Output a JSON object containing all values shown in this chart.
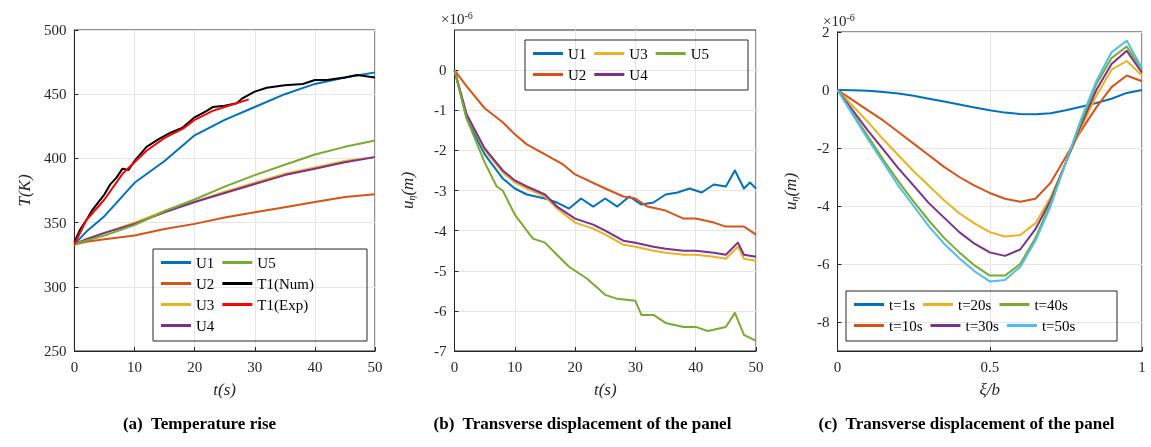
{
  "chart_data": [
    {
      "type": "line",
      "title": "(a)  Temperature rise",
      "xlabel": "t(s)",
      "ylabel": "T(K)",
      "xlim": [
        0,
        50
      ],
      "xticks": [
        0,
        10,
        20,
        30,
        40,
        50
      ],
      "ylim": [
        250,
        500
      ],
      "yticks": [
        250,
        300,
        350,
        400,
        450,
        500
      ],
      "grid": true,
      "legend": "bottom right",
      "marker": "none",
      "x": [
        0,
        2,
        5,
        10,
        15,
        20,
        25,
        30,
        35,
        40,
        45,
        50
      ],
      "series": [
        {
          "name": "U1",
          "color": "#0072bd",
          "values": [
            333,
            343,
            355,
            381,
            398,
            418,
            430,
            440,
            450,
            458,
            463,
            467
          ]
        },
        {
          "name": "U2",
          "color": "#d95319",
          "values": [
            333,
            335,
            337,
            340,
            345,
            349,
            354,
            358,
            362,
            366,
            370,
            372
          ]
        },
        {
          "name": "U3",
          "color": "#edb120",
          "values": [
            333,
            337,
            342,
            350,
            359,
            366,
            374,
            381,
            388,
            393,
            398,
            401
          ]
        },
        {
          "name": "U4",
          "color": "#7e2f8e",
          "values": [
            333,
            337,
            342,
            349,
            358,
            366,
            373,
            380,
            387,
            392,
            397,
            401
          ]
        },
        {
          "name": "U5",
          "color": "#77ac30",
          "values": [
            333,
            336,
            340,
            348,
            359,
            368,
            378,
            387,
            395,
            403,
            409,
            414
          ]
        },
        {
          "name": "T1(Num)",
          "color": "#000000",
          "x": [
            0,
            1,
            2,
            3,
            4,
            5,
            6,
            7,
            8,
            9,
            10,
            12,
            14,
            16,
            18,
            20,
            22,
            23,
            25,
            27,
            28,
            30,
            32,
            35,
            38,
            40,
            42,
            45,
            47,
            50
          ],
          "values": [
            335,
            345,
            352,
            360,
            366,
            372,
            380,
            385,
            392,
            391,
            398,
            409,
            415,
            420,
            424,
            432,
            437,
            440,
            441,
            443,
            447,
            452,
            455,
            457,
            458,
            461,
            461,
            463,
            465,
            463
          ]
        },
        {
          "name": "T1(Exp)",
          "color": "#ff0000",
          "x": [
            0,
            2,
            5,
            8,
            10,
            12,
            15,
            18,
            20,
            23,
            25,
            29
          ],
          "values": [
            333,
            352,
            368,
            388,
            397,
            406,
            416,
            423,
            430,
            437,
            440,
            446
          ]
        }
      ]
    },
    {
      "type": "line",
      "title": "(b)  Transverse displacement of the panel",
      "xlabel": "t(s)",
      "ylabel": "u$_{η}$(m)",
      "annotations": [
        "×10$^{-6}$"
      ],
      "xlim": [
        0,
        50
      ],
      "xticks": [
        0,
        10,
        20,
        30,
        40,
        50
      ],
      "ylim": [
        -7,
        1
      ],
      "yticks": [
        -7,
        -6,
        -5,
        -4,
        -3,
        -2,
        -1,
        0
      ],
      "grid": true,
      "legend": "top right",
      "marker": "none",
      "series": [
        {
          "name": "U1",
          "color": "#0072bd",
          "x": [
            0,
            2,
            5,
            8,
            10,
            12,
            15,
            17,
            19,
            21,
            23,
            25,
            27,
            29,
            31,
            33,
            35,
            37,
            39,
            41,
            43,
            45,
            46.5,
            48,
            49,
            50
          ],
          "values": [
            0,
            -1.2,
            -2.1,
            -2.7,
            -2.95,
            -3.1,
            -3.2,
            -3.3,
            -3.45,
            -3.2,
            -3.4,
            -3.2,
            -3.4,
            -3.15,
            -3.35,
            -3.3,
            -3.1,
            -3.05,
            -2.95,
            -3.05,
            -2.85,
            -2.9,
            -2.5,
            -2.95,
            -2.8,
            -2.95
          ]
        },
        {
          "name": "U2",
          "color": "#d95319",
          "x": [
            0,
            2,
            5,
            8,
            10,
            12,
            15,
            18,
            20,
            25,
            28,
            30,
            32,
            35,
            38,
            40,
            43,
            45,
            48,
            50
          ],
          "values": [
            0,
            -0.4,
            -0.95,
            -1.3,
            -1.6,
            -1.85,
            -2.1,
            -2.35,
            -2.6,
            -2.95,
            -3.15,
            -3.2,
            -3.4,
            -3.5,
            -3.7,
            -3.7,
            -3.8,
            -3.9,
            -3.9,
            -4.1
          ]
        },
        {
          "name": "U3",
          "color": "#edb120",
          "x": [
            0,
            2,
            5,
            8,
            10,
            12,
            15,
            17,
            20,
            23,
            25,
            28,
            30,
            33,
            35,
            38,
            40,
            43,
            45,
            47,
            48,
            50
          ],
          "values": [
            0,
            -1.1,
            -2.0,
            -2.55,
            -2.8,
            -2.95,
            -3.15,
            -3.45,
            -3.8,
            -3.95,
            -4.1,
            -4.35,
            -4.4,
            -4.5,
            -4.55,
            -4.6,
            -4.6,
            -4.65,
            -4.7,
            -4.4,
            -4.7,
            -4.75
          ]
        },
        {
          "name": "U4",
          "color": "#7e2f8e",
          "x": [
            0,
            2,
            5,
            8,
            10,
            12,
            15,
            17,
            20,
            23,
            25,
            28,
            30,
            33,
            35,
            38,
            40,
            43,
            45,
            47,
            48,
            50
          ],
          "values": [
            0,
            -1.1,
            -1.95,
            -2.5,
            -2.75,
            -2.9,
            -3.1,
            -3.4,
            -3.7,
            -3.85,
            -4.0,
            -4.25,
            -4.3,
            -4.4,
            -4.45,
            -4.5,
            -4.5,
            -4.55,
            -4.6,
            -4.3,
            -4.6,
            -4.65
          ]
        },
        {
          "name": "U5",
          "color": "#77ac30",
          "x": [
            0,
            2,
            5,
            7,
            8,
            10,
            12,
            13,
            15,
            17,
            19,
            20,
            22,
            25,
            27,
            30,
            31,
            33,
            35,
            38,
            40,
            42,
            45,
            46.5,
            48,
            50
          ],
          "values": [
            0,
            -1.2,
            -2.3,
            -2.9,
            -3.0,
            -3.6,
            -4.0,
            -4.2,
            -4.3,
            -4.6,
            -4.9,
            -5.0,
            -5.2,
            -5.6,
            -5.7,
            -5.75,
            -6.1,
            -6.1,
            -6.3,
            -6.4,
            -6.4,
            -6.5,
            -6.4,
            -6.05,
            -6.6,
            -6.75
          ]
        }
      ]
    },
    {
      "type": "line",
      "title": "(c)  Transverse displacement of the panel",
      "xlabel": "ξ/b",
      "ylabel": "u$_{η}$(m)",
      "annotations": [
        "×10$^{-6}$"
      ],
      "xlim": [
        0,
        1
      ],
      "xticks": [
        0,
        0.5,
        1
      ],
      "ylim": [
        -9,
        2
      ],
      "yticks": [
        -8,
        -6,
        -4,
        -2,
        0,
        2
      ],
      "grid": true,
      "legend": "bottom",
      "marker": "none",
      "x": [
        0,
        0.05,
        0.1,
        0.15,
        0.2,
        0.25,
        0.3,
        0.35,
        0.4,
        0.45,
        0.5,
        0.55,
        0.6,
        0.65,
        0.7,
        0.75,
        0.8,
        0.85,
        0.9,
        0.95,
        1
      ],
      "series": [
        {
          "name": "t=1s",
          "color": "#0072bd",
          "values": [
            0,
            -0.01,
            -0.03,
            -0.07,
            -0.12,
            -0.2,
            -0.3,
            -0.4,
            -0.5,
            -0.6,
            -0.7,
            -0.78,
            -0.83,
            -0.84,
            -0.8,
            -0.7,
            -0.58,
            -0.45,
            -0.3,
            -0.1,
            0
          ]
        },
        {
          "name": "t=10s",
          "color": "#d95319",
          "values": [
            0,
            -0.35,
            -0.7,
            -1.05,
            -1.45,
            -1.85,
            -2.25,
            -2.65,
            -3.0,
            -3.3,
            -3.55,
            -3.75,
            -3.85,
            -3.75,
            -3.2,
            -2.3,
            -1.4,
            -0.6,
            0.1,
            0.5,
            0.3
          ]
        },
        {
          "name": "t=20s",
          "color": "#edb120",
          "values": [
            0,
            -0.55,
            -1.1,
            -1.7,
            -2.25,
            -2.8,
            -3.3,
            -3.8,
            -4.25,
            -4.6,
            -4.9,
            -5.05,
            -5.0,
            -4.6,
            -3.7,
            -2.5,
            -1.3,
            -0.2,
            0.7,
            1.0,
            0.5
          ]
        },
        {
          "name": "t=30s",
          "color": "#7e2f8e",
          "values": [
            0,
            -0.7,
            -1.4,
            -2.05,
            -2.7,
            -3.3,
            -3.9,
            -4.4,
            -4.9,
            -5.3,
            -5.6,
            -5.72,
            -5.5,
            -4.8,
            -3.8,
            -2.5,
            -1.2,
            0.0,
            0.9,
            1.35,
            0.6
          ]
        },
        {
          "name": "t=40s",
          "color": "#77ac30",
          "values": [
            0,
            -0.8,
            -1.6,
            -2.4,
            -3.15,
            -3.85,
            -4.5,
            -5.1,
            -5.6,
            -6.05,
            -6.4,
            -6.4,
            -6.0,
            -5.1,
            -3.9,
            -2.5,
            -1.1,
            0.2,
            1.1,
            1.5,
            0.7
          ]
        },
        {
          "name": "t=50s",
          "color": "#4dbeee",
          "values": [
            0,
            -0.85,
            -1.7,
            -2.5,
            -3.3,
            -4.0,
            -4.7,
            -5.3,
            -5.8,
            -6.25,
            -6.6,
            -6.55,
            -6.1,
            -5.2,
            -4.0,
            -2.5,
            -1.0,
            0.3,
            1.3,
            1.7,
            0.75
          ]
        }
      ]
    }
  ]
}
